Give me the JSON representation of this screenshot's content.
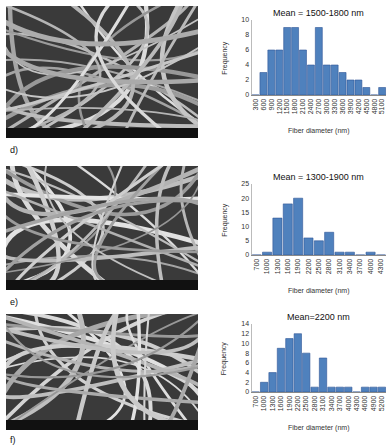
{
  "chart_data": [
    {
      "type": "bar",
      "title": "d)",
      "annotations": [
        "Mean = 1500-1800 nm"
      ],
      "x_label": "Fiber diameter (nm)",
      "y_label": "Frequency",
      "categories": [
        300,
        600,
        900,
        1200,
        1500,
        1800,
        2100,
        2400,
        2700,
        3000,
        3300,
        3600,
        3900,
        4200,
        4500,
        4800,
        5100
      ],
      "values": [
        0,
        3,
        6,
        6,
        9,
        9,
        6,
        4,
        9,
        4,
        4,
        3,
        2,
        2,
        1,
        0,
        1
      ],
      "color": "#4f81bd",
      "ylim": [
        0,
        10
      ],
      "yticks": [
        0,
        2,
        4,
        6,
        8,
        10
      ],
      "grid": false
    },
    {
      "type": "bar",
      "title": "e)",
      "annotations": [
        "Mean = 1300-1900 nm"
      ],
      "x_label": "Fiber diameter (nm)",
      "y_label": "Frequency",
      "categories": [
        700,
        1000,
        1300,
        1600,
        1900,
        2200,
        2500,
        2800,
        3100,
        3400,
        3700,
        4000,
        4300
      ],
      "values": [
        0,
        1,
        13,
        18,
        20,
        6,
        5,
        8,
        1,
        1,
        0,
        1,
        0
      ],
      "color": "#4f81bd",
      "ylim": [
        0,
        25
      ],
      "yticks": [
        0,
        5,
        10,
        15,
        20,
        25
      ],
      "grid": false
    },
    {
      "type": "bar",
      "title": "f)",
      "annotations": [
        "Mean=2200 nm"
      ],
      "x_label": "Fiber diameter (nm)",
      "y_label": "Frequency",
      "categories": [
        700,
        1000,
        1300,
        1600,
        1900,
        2200,
        2500,
        2800,
        3100,
        3400,
        3700,
        4000,
        4300,
        4600,
        4900,
        5200
      ],
      "values": [
        0,
        2,
        4,
        9,
        11,
        12,
        8,
        1,
        7,
        1,
        1,
        1,
        0,
        1,
        1,
        1
      ],
      "color": "#4f81bd",
      "ylim": [
        0,
        14
      ],
      "yticks": [
        0,
        2,
        4,
        6,
        8,
        10,
        12,
        14
      ],
      "grid": false
    }
  ]
}
